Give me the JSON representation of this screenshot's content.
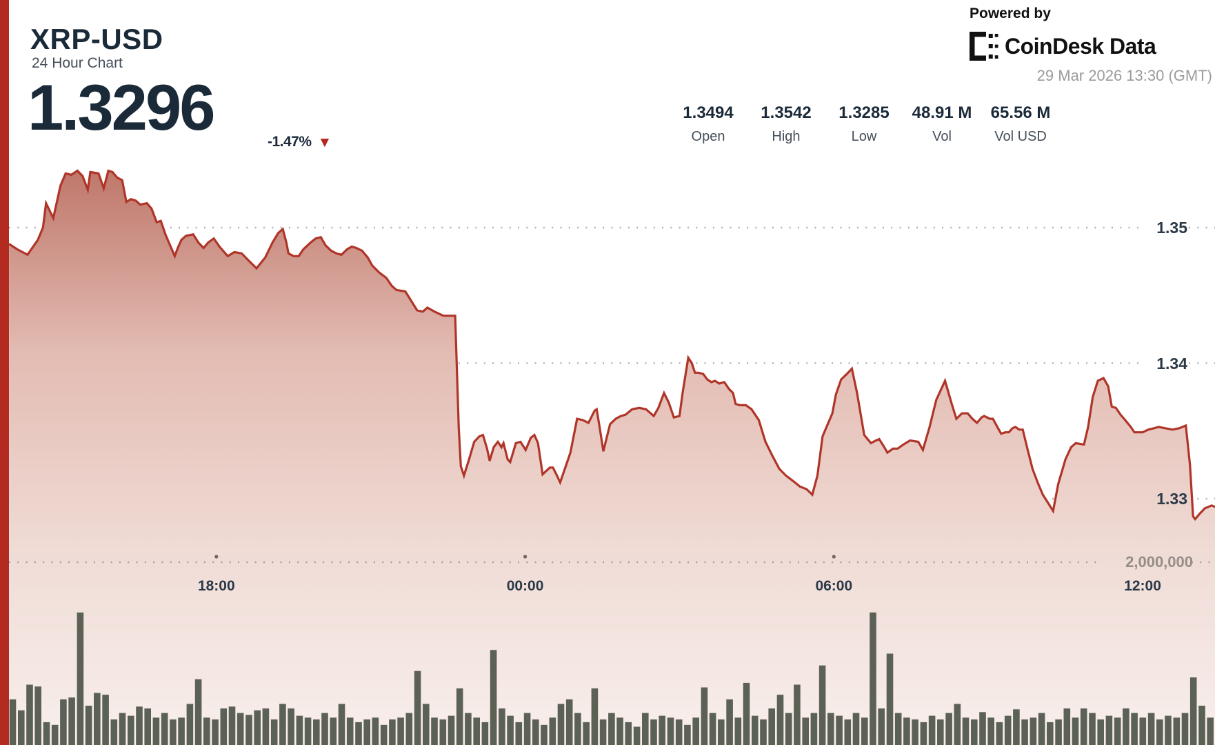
{
  "header": {
    "symbol": "XRP-USD",
    "subtitle": "24 Hour Chart",
    "price": "1.3296",
    "change_pct": "-1.47%",
    "change_arrow": "▼"
  },
  "branding": {
    "powered_by": "Powered by",
    "logo_text": "CoinDesk Data",
    "timestamp": "29 Mar 2026 13:30 (GMT)"
  },
  "stats": [
    {
      "value": "1.3494",
      "label": "Open"
    },
    {
      "value": "1.3542",
      "label": "High"
    },
    {
      "value": "1.3285",
      "label": "Low"
    },
    {
      "value": "48.91 M",
      "label": "Vol"
    },
    {
      "value": "65.56 M",
      "label": "Vol USD"
    }
  ],
  "colors": {
    "accent_red": "#b32a20",
    "line_red": "#b03529",
    "area_top": "#bc7164",
    "area_mid": "#e3bcb3",
    "area_bottom": "#f8efec",
    "volume_bar": "#5c6156",
    "dark_navy": "#1b2a39",
    "axis_text": "#2b3947",
    "muted_gray": "#9b9b9b",
    "grid_dot": "#b4b0ae",
    "vol_grid_dot": "#ab9d97",
    "vol_label_gray": "#968d89",
    "label_gray": "#454e5a",
    "black": "#111111"
  },
  "chart_data": {
    "type": "area",
    "title": "XRP-USD 24 Hour Chart",
    "open": 1.3494,
    "high": 1.3542,
    "low": 1.3285,
    "close": 1.3296,
    "volume": "48.91 M",
    "volume_usd": "65.56 M",
    "x_axis": {
      "span_hours": 24,
      "window": "13:30 GMT to 13:30 GMT next day",
      "tick_labels": [
        "18:00",
        "00:00",
        "06:00",
        "12:00"
      ],
      "tick_hours": [
        4.5,
        10.5,
        16.5,
        22.5
      ],
      "grid": "dotted"
    },
    "y_axis_price": {
      "labels": [
        "1.35",
        "1.34",
        "1.33"
      ],
      "values": [
        1.35,
        1.34,
        1.33
      ],
      "range": [
        1.3246,
        1.3556
      ],
      "grid": "dotted"
    },
    "y_axis_volume": {
      "label": "2,000,000",
      "value_millions": 2.0,
      "range_millions": [
        0,
        2.64
      ]
    },
    "price_series": [
      [
        0.47,
        1.3488
      ],
      [
        0.63,
        1.3484
      ],
      [
        0.83,
        1.348
      ],
      [
        1.03,
        1.3491
      ],
      [
        1.13,
        1.35
      ],
      [
        1.19,
        1.3518
      ],
      [
        1.33,
        1.3507
      ],
      [
        1.47,
        1.3531
      ],
      [
        1.57,
        1.354
      ],
      [
        1.68,
        1.3539
      ],
      [
        1.8,
        1.3542
      ],
      [
        1.9,
        1.3538
      ],
      [
        2.0,
        1.3528
      ],
      [
        2.05,
        1.3541
      ],
      [
        2.21,
        1.354
      ],
      [
        2.31,
        1.3529
      ],
      [
        2.4,
        1.3542
      ],
      [
        2.48,
        1.3541
      ],
      [
        2.57,
        1.3537
      ],
      [
        2.67,
        1.3535
      ],
      [
        2.75,
        1.3519
      ],
      [
        2.84,
        1.3521
      ],
      [
        2.93,
        1.352
      ],
      [
        3.02,
        1.3517
      ],
      [
        3.15,
        1.3518
      ],
      [
        3.24,
        1.3514
      ],
      [
        3.34,
        1.3504
      ],
      [
        3.42,
        1.3505
      ],
      [
        3.51,
        1.3495
      ],
      [
        3.6,
        1.3487
      ],
      [
        3.69,
        1.3479
      ],
      [
        3.75,
        1.3485
      ],
      [
        3.82,
        1.3491
      ],
      [
        3.91,
        1.3494
      ],
      [
        4.05,
        1.3495
      ],
      [
        4.15,
        1.3489
      ],
      [
        4.25,
        1.3485
      ],
      [
        4.34,
        1.3489
      ],
      [
        4.45,
        1.3492
      ],
      [
        4.56,
        1.3486
      ],
      [
        4.72,
        1.3479
      ],
      [
        4.85,
        1.3482
      ],
      [
        4.99,
        1.3481
      ],
      [
        5.12,
        1.3476
      ],
      [
        5.28,
        1.347
      ],
      [
        5.45,
        1.3478
      ],
      [
        5.59,
        1.3489
      ],
      [
        5.7,
        1.3496
      ],
      [
        5.79,
        1.3499
      ],
      [
        5.86,
        1.3489
      ],
      [
        5.9,
        1.3481
      ],
      [
        6.0,
        1.3479
      ],
      [
        6.1,
        1.3479
      ],
      [
        6.19,
        1.3484
      ],
      [
        6.33,
        1.3489
      ],
      [
        6.43,
        1.3492
      ],
      [
        6.53,
        1.3493
      ],
      [
        6.62,
        1.3487
      ],
      [
        6.73,
        1.3483
      ],
      [
        6.83,
        1.3481
      ],
      [
        6.93,
        1.348
      ],
      [
        7.04,
        1.3484
      ],
      [
        7.13,
        1.3486
      ],
      [
        7.22,
        1.3485
      ],
      [
        7.33,
        1.3483
      ],
      [
        7.44,
        1.3478
      ],
      [
        7.53,
        1.3472
      ],
      [
        7.66,
        1.3467
      ],
      [
        7.8,
        1.3463
      ],
      [
        7.91,
        1.3457
      ],
      [
        8.0,
        1.3454
      ],
      [
        8.17,
        1.3453
      ],
      [
        8.27,
        1.3447
      ],
      [
        8.4,
        1.3439
      ],
      [
        8.51,
        1.3438
      ],
      [
        8.6,
        1.3441
      ],
      [
        8.74,
        1.3438
      ],
      [
        8.91,
        1.3435
      ],
      [
        9.03,
        1.3435
      ],
      [
        9.14,
        1.3435
      ],
      [
        9.21,
        1.3352
      ],
      [
        9.25,
        1.3324
      ],
      [
        9.31,
        1.3317
      ],
      [
        9.41,
        1.3329
      ],
      [
        9.51,
        1.3342
      ],
      [
        9.61,
        1.3346
      ],
      [
        9.68,
        1.3347
      ],
      [
        9.76,
        1.3337
      ],
      [
        9.81,
        1.3328
      ],
      [
        9.89,
        1.3338
      ],
      [
        9.97,
        1.3342
      ],
      [
        10.04,
        1.3338
      ],
      [
        10.08,
        1.3341
      ],
      [
        10.16,
        1.3329
      ],
      [
        10.21,
        1.3327
      ],
      [
        10.32,
        1.3341
      ],
      [
        10.41,
        1.3342
      ],
      [
        10.51,
        1.3336
      ],
      [
        10.61,
        1.3345
      ],
      [
        10.68,
        1.3347
      ],
      [
        10.75,
        1.3341
      ],
      [
        10.84,
        1.3318
      ],
      [
        10.98,
        1.3323
      ],
      [
        11.04,
        1.3323
      ],
      [
        11.12,
        1.3317
      ],
      [
        11.18,
        1.3312
      ],
      [
        11.28,
        1.3323
      ],
      [
        11.38,
        1.3334
      ],
      [
        11.51,
        1.3359
      ],
      [
        11.62,
        1.3358
      ],
      [
        11.73,
        1.3356
      ],
      [
        11.85,
        1.3365
      ],
      [
        11.89,
        1.3366
      ],
      [
        11.95,
        1.3352
      ],
      [
        12.02,
        1.3335
      ],
      [
        12.15,
        1.3355
      ],
      [
        12.26,
        1.3359
      ],
      [
        12.36,
        1.3361
      ],
      [
        12.45,
        1.3362
      ],
      [
        12.58,
        1.3366
      ],
      [
        12.72,
        1.3367
      ],
      [
        12.85,
        1.3366
      ],
      [
        13.0,
        1.3361
      ],
      [
        13.09,
        1.3367
      ],
      [
        13.2,
        1.3378
      ],
      [
        13.29,
        1.3371
      ],
      [
        13.39,
        1.336
      ],
      [
        13.5,
        1.3361
      ],
      [
        13.56,
        1.3378
      ],
      [
        13.67,
        1.3404
      ],
      [
        13.74,
        1.34
      ],
      [
        13.8,
        1.3393
      ],
      [
        13.87,
        1.3393
      ],
      [
        13.96,
        1.3392
      ],
      [
        14.04,
        1.3388
      ],
      [
        14.12,
        1.3386
      ],
      [
        14.19,
        1.3387
      ],
      [
        14.27,
        1.3385
      ],
      [
        14.37,
        1.3386
      ],
      [
        14.46,
        1.3381
      ],
      [
        14.54,
        1.3378
      ],
      [
        14.59,
        1.337
      ],
      [
        14.67,
        1.3369
      ],
      [
        14.79,
        1.3369
      ],
      [
        14.9,
        1.3366
      ],
      [
        15.04,
        1.3358
      ],
      [
        15.17,
        1.3342
      ],
      [
        15.3,
        1.3332
      ],
      [
        15.44,
        1.3322
      ],
      [
        15.57,
        1.3317
      ],
      [
        15.71,
        1.3313
      ],
      [
        15.84,
        1.3309
      ],
      [
        15.97,
        1.3307
      ],
      [
        16.08,
        1.3303
      ],
      [
        16.18,
        1.3317
      ],
      [
        16.28,
        1.3346
      ],
      [
        16.38,
        1.3355
      ],
      [
        16.47,
        1.3363
      ],
      [
        16.54,
        1.3377
      ],
      [
        16.64,
        1.3388
      ],
      [
        16.75,
        1.3392
      ],
      [
        16.85,
        1.3396
      ],
      [
        16.95,
        1.3378
      ],
      [
        17.09,
        1.3347
      ],
      [
        17.22,
        1.3341
      ],
      [
        17.32,
        1.3343
      ],
      [
        17.38,
        1.3344
      ],
      [
        17.48,
        1.3338
      ],
      [
        17.54,
        1.3334
      ],
      [
        17.65,
        1.3337
      ],
      [
        17.74,
        1.3337
      ],
      [
        17.85,
        1.334
      ],
      [
        17.98,
        1.3343
      ],
      [
        18.14,
        1.3342
      ],
      [
        18.23,
        1.3336
      ],
      [
        18.36,
        1.3353
      ],
      [
        18.49,
        1.3373
      ],
      [
        18.66,
        1.3387
      ],
      [
        18.79,
        1.337
      ],
      [
        18.88,
        1.3359
      ],
      [
        18.99,
        1.3363
      ],
      [
        19.1,
        1.3363
      ],
      [
        19.19,
        1.3359
      ],
      [
        19.28,
        1.3356
      ],
      [
        19.37,
        1.336
      ],
      [
        19.42,
        1.3361
      ],
      [
        19.53,
        1.3359
      ],
      [
        19.59,
        1.3359
      ],
      [
        19.69,
        1.3352
      ],
      [
        19.75,
        1.3348
      ],
      [
        19.83,
        1.3349
      ],
      [
        19.9,
        1.3349
      ],
      [
        19.97,
        1.3352
      ],
      [
        20.03,
        1.3353
      ],
      [
        20.1,
        1.3351
      ],
      [
        20.17,
        1.3351
      ],
      [
        20.26,
        1.3337
      ],
      [
        20.36,
        1.3322
      ],
      [
        20.46,
        1.3312
      ],
      [
        20.56,
        1.3303
      ],
      [
        20.66,
        1.3297
      ],
      [
        20.76,
        1.3291
      ],
      [
        20.86,
        1.3311
      ],
      [
        21.0,
        1.3329
      ],
      [
        21.11,
        1.3338
      ],
      [
        21.2,
        1.3341
      ],
      [
        21.36,
        1.334
      ],
      [
        21.44,
        1.3353
      ],
      [
        21.53,
        1.3375
      ],
      [
        21.63,
        1.3387
      ],
      [
        21.74,
        1.3389
      ],
      [
        21.83,
        1.3383
      ],
      [
        21.9,
        1.3368
      ],
      [
        21.98,
        1.3367
      ],
      [
        22.07,
        1.3362
      ],
      [
        22.14,
        1.3359
      ],
      [
        22.27,
        1.3353
      ],
      [
        22.34,
        1.3349
      ],
      [
        22.5,
        1.3349
      ],
      [
        22.61,
        1.3351
      ],
      [
        22.72,
        1.3352
      ],
      [
        22.81,
        1.3353
      ],
      [
        22.94,
        1.3352
      ],
      [
        23.08,
        1.3351
      ],
      [
        23.21,
        1.3352
      ],
      [
        23.34,
        1.3354
      ],
      [
        23.42,
        1.3325
      ],
      [
        23.48,
        1.3287
      ],
      [
        23.52,
        1.3285
      ],
      [
        23.61,
        1.3289
      ],
      [
        23.71,
        1.3293
      ],
      [
        23.84,
        1.3295
      ],
      [
        23.91,
        1.3294
      ]
    ],
    "volume_series_millions": [
      0.52,
      0.5,
      0.38,
      0.66,
      0.64,
      0.25,
      0.22,
      0.5,
      0.52,
      1.45,
      0.43,
      0.57,
      0.55,
      0.28,
      0.35,
      0.32,
      0.42,
      0.4,
      0.3,
      0.35,
      0.28,
      0.3,
      0.45,
      0.72,
      0.3,
      0.28,
      0.4,
      0.42,
      0.35,
      0.33,
      0.38,
      0.4,
      0.28,
      0.45,
      0.4,
      0.32,
      0.3,
      0.28,
      0.35,
      0.3,
      0.45,
      0.3,
      0.25,
      0.28,
      0.3,
      0.22,
      0.28,
      0.3,
      0.35,
      0.81,
      0.45,
      0.3,
      0.28,
      0.32,
      0.62,
      0.35,
      0.3,
      0.25,
      1.04,
      0.4,
      0.32,
      0.25,
      0.35,
      0.28,
      0.22,
      0.3,
      0.45,
      0.5,
      0.35,
      0.25,
      0.62,
      0.28,
      0.35,
      0.3,
      0.25,
      0.2,
      0.35,
      0.28,
      0.32,
      0.3,
      0.28,
      0.22,
      0.3,
      0.63,
      0.35,
      0.28,
      0.5,
      0.3,
      0.68,
      0.32,
      0.28,
      0.4,
      0.55,
      0.35,
      0.66,
      0.3,
      0.35,
      0.87,
      0.35,
      0.32,
      0.28,
      0.35,
      0.3,
      1.45,
      0.4,
      1.0,
      0.35,
      0.3,
      0.28,
      0.25,
      0.32,
      0.28,
      0.35,
      0.45,
      0.3,
      0.28,
      0.36,
      0.3,
      0.25,
      0.32,
      0.39,
      0.28,
      0.3,
      0.35,
      0.25,
      0.28,
      0.4,
      0.3,
      0.4,
      0.35,
      0.28,
      0.32,
      0.3,
      0.4,
      0.35,
      0.3,
      0.35,
      0.28,
      0.32,
      0.3,
      0.35,
      0.74,
      0.43,
      0.3
    ]
  }
}
